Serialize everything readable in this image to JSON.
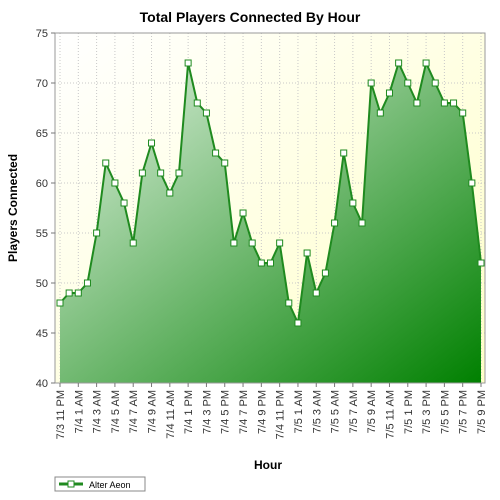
{
  "chart_data": {
    "type": "area",
    "title": "Total Players Connected By Hour",
    "xlabel": "Hour",
    "ylabel": "Players Connected",
    "ylim": [
      40,
      75
    ],
    "yticks": [
      40,
      45,
      50,
      55,
      60,
      65,
      70,
      75
    ],
    "grid": true,
    "legend_position": "bottom-left",
    "x_tick_labels": [
      "7/3 11 PM",
      "7/4 1 AM",
      "7/4 3 AM",
      "7/4 5 AM",
      "7/4 7 AM",
      "7/4 9 AM",
      "7/4 11 AM",
      "7/4 1 PM",
      "7/4 3 PM",
      "7/4 5 PM",
      "7/4 7 PM",
      "7/4 9 PM",
      "7/4 11 PM",
      "7/5 1 AM",
      "7/5 3 AM",
      "7/5 5 AM",
      "7/5 7 AM",
      "7/5 9 AM",
      "7/5 11 AM",
      "7/5 1 PM",
      "7/5 3 PM",
      "7/5 5 PM",
      "7/5 7 PM",
      "7/5 9 PM"
    ],
    "series": [
      {
        "name": "Alter Aeon",
        "color": "#008000",
        "values": [
          48,
          49,
          49,
          50,
          55,
          62,
          60,
          58,
          54,
          61,
          64,
          61,
          59,
          61,
          72,
          68,
          67,
          63,
          62,
          54,
          57,
          54,
          52,
          52,
          54,
          48,
          46,
          53,
          49,
          51,
          56,
          63,
          58,
          56,
          70,
          67,
          69,
          72,
          70,
          68,
          72,
          70,
          68,
          68,
          67,
          60,
          52
        ]
      }
    ]
  }
}
